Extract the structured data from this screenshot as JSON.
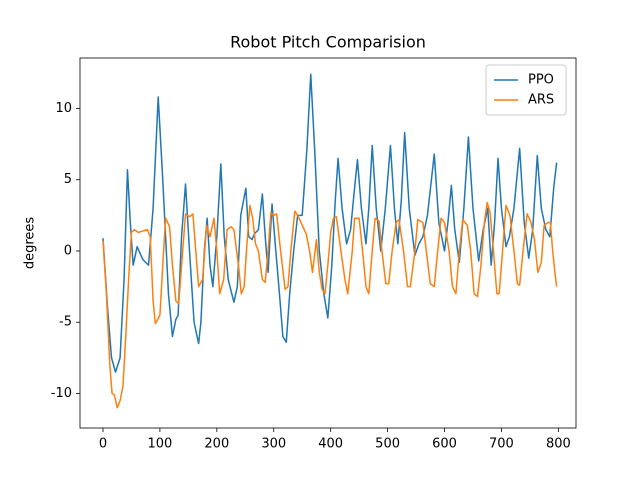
{
  "chart_data": {
    "type": "line",
    "title": "Robot Pitch Comparision",
    "y_label": "degrees",
    "xlim": [
      -40.4,
      831
    ],
    "ylim": [
      -12.42,
      13.54
    ],
    "xticks": [
      0,
      100,
      200,
      300,
      400,
      500,
      600,
      700,
      800
    ],
    "yticks": [
      -10,
      -5,
      0,
      5,
      10
    ],
    "grid": false,
    "legend": "upper right",
    "series": [
      {
        "name": "PPO",
        "color": "#1f77b4",
        "x": [
          0,
          8,
          15,
          22,
          30,
          37,
          43,
          48,
          53,
          60,
          70,
          80,
          88,
          97,
          105,
          115,
          122,
          128,
          132,
          138,
          145,
          152,
          160,
          168,
          172,
          178,
          183,
          188,
          193,
          200,
          207,
          213,
          220,
          230,
          236,
          242,
          251,
          256,
          262,
          266,
          273,
          280,
          285,
          290,
          297,
          303,
          310,
          316,
          322,
          328,
          335,
          342,
          350,
          358,
          365,
          372,
          380,
          388,
          395,
          402,
          408,
          413,
          420,
          428,
          435,
          441,
          447,
          454,
          462,
          467,
          473,
          480,
          488,
          496,
          505,
          512,
          518,
          524,
          530,
          538,
          548,
          555,
          562,
          570,
          582,
          590,
          600,
          606,
          612,
          618,
          626,
          634,
          642,
          650,
          660,
          668,
          676,
          682,
          688,
          694,
          700,
          708,
          714,
          722,
          732,
          740,
          748,
          755,
          763,
          770,
          778,
          785,
          792,
          797
        ],
        "values": [
          0.9,
          -4,
          -7.5,
          -8.5,
          -7.5,
          -2,
          5.7,
          2,
          -1,
          0.3,
          -0.6,
          -1,
          3,
          10.8,
          5,
          -3,
          -6,
          -4.8,
          -4.5,
          1,
          4.7,
          0,
          -5,
          -6.5,
          -5,
          0,
          2.3,
          -1,
          -2.5,
          1,
          6.1,
          1,
          -2,
          -3.6,
          -2.5,
          2.5,
          4.4,
          1,
          0.8,
          1.2,
          1.5,
          4,
          1,
          -1.5,
          3.3,
          0.3,
          -3,
          -6,
          -6.4,
          -3,
          0,
          2.5,
          2.5,
          7,
          12.4,
          7,
          0,
          -3,
          -4.7,
          -1,
          3.5,
          6.5,
          3,
          0.5,
          1.5,
          4,
          6.4,
          3,
          0.5,
          3,
          7.4,
          3,
          0,
          3,
          7.4,
          3,
          0.5,
          3.5,
          8.3,
          3,
          -0.3,
          0.5,
          1,
          2.5,
          6.8,
          2,
          0,
          2,
          4.6,
          1.5,
          -0.8,
          3,
          8,
          3,
          -0.7,
          1.5,
          3,
          -1,
          2,
          6.5,
          3,
          0.3,
          1,
          3,
          7.2,
          2,
          -0.5,
          1.5,
          6.7,
          3,
          1.5,
          1,
          4.5,
          6.2
        ]
      },
      {
        "name": "ARS",
        "color": "#ff7f0e",
        "x": [
          0,
          6,
          12,
          16,
          20,
          25,
          30,
          35,
          40,
          45,
          50,
          55,
          62,
          70,
          78,
          83,
          88,
          92,
          100,
          105,
          110,
          117,
          122,
          128,
          133,
          140,
          145,
          152,
          158,
          163,
          168,
          175,
          182,
          188,
          195,
          200,
          205,
          212,
          218,
          225,
          230,
          238,
          243,
          248,
          252,
          258,
          263,
          268,
          273,
          280,
          285,
          290,
          295,
          300,
          305,
          312,
          320,
          325,
          330,
          337,
          342,
          350,
          357,
          363,
          368,
          375,
          380,
          385,
          390,
          395,
          400,
          405,
          410,
          418,
          425,
          430,
          438,
          442,
          450,
          456,
          462,
          467,
          473,
          478,
          485,
          490,
          497,
          502,
          508,
          515,
          520,
          528,
          535,
          540,
          548,
          553,
          562,
          568,
          575,
          582,
          588,
          594,
          600,
          608,
          614,
          620,
          626,
          632,
          640,
          646,
          652,
          658,
          664,
          670,
          675,
          680,
          686,
          692,
          696,
          702,
          708,
          715,
          722,
          728,
          732,
          738,
          745,
          752,
          758,
          764,
          770,
          775,
          782,
          786,
          790,
          794,
          797
        ],
        "values": [
          0.7,
          -3,
          -8,
          -10,
          -10.1,
          -11,
          -10.5,
          -9.5,
          -6,
          -2,
          1.3,
          1.5,
          1.3,
          1.4,
          1.5,
          1,
          -3.5,
          -5.1,
          -4.5,
          -1,
          2.3,
          1.7,
          -1,
          -3.5,
          -3.7,
          0,
          2.6,
          2.4,
          2.6,
          0,
          -2.5,
          -2,
          1.8,
          1,
          2.3,
          0,
          -3,
          -2,
          1.5,
          1.7,
          1.5,
          -1,
          -3,
          -2.5,
          0,
          3.2,
          2.3,
          0.5,
          0,
          -2,
          -2.2,
          0,
          2.7,
          2.5,
          2.6,
          0,
          -2.7,
          -2.5,
          0,
          2.8,
          2.5,
          1.8,
          1.2,
          0,
          -1.5,
          0.8,
          -1.5,
          -2.7,
          -3,
          -1,
          1.3,
          2.3,
          2.4,
          0,
          -2,
          -3,
          0,
          2.3,
          2.3,
          0,
          -2.5,
          -3,
          0,
          2.3,
          2.1,
          0,
          -2.3,
          -2.3,
          0,
          2,
          2.2,
          0,
          -2.5,
          -2.5,
          0,
          2.2,
          2,
          0,
          -2.3,
          -2.5,
          0,
          2.3,
          2,
          0,
          -2.5,
          -3,
          0,
          2.2,
          1.8,
          0,
          -3,
          -3.2,
          -1,
          2,
          3.4,
          2.7,
          0,
          -3,
          -3,
          0,
          3.2,
          2.5,
          0,
          -2.3,
          -2.4,
          0,
          2.6,
          2,
          0.8,
          -1.5,
          -0.8,
          1.8,
          2,
          2,
          0,
          -1.5,
          -2.5
        ]
      }
    ]
  }
}
